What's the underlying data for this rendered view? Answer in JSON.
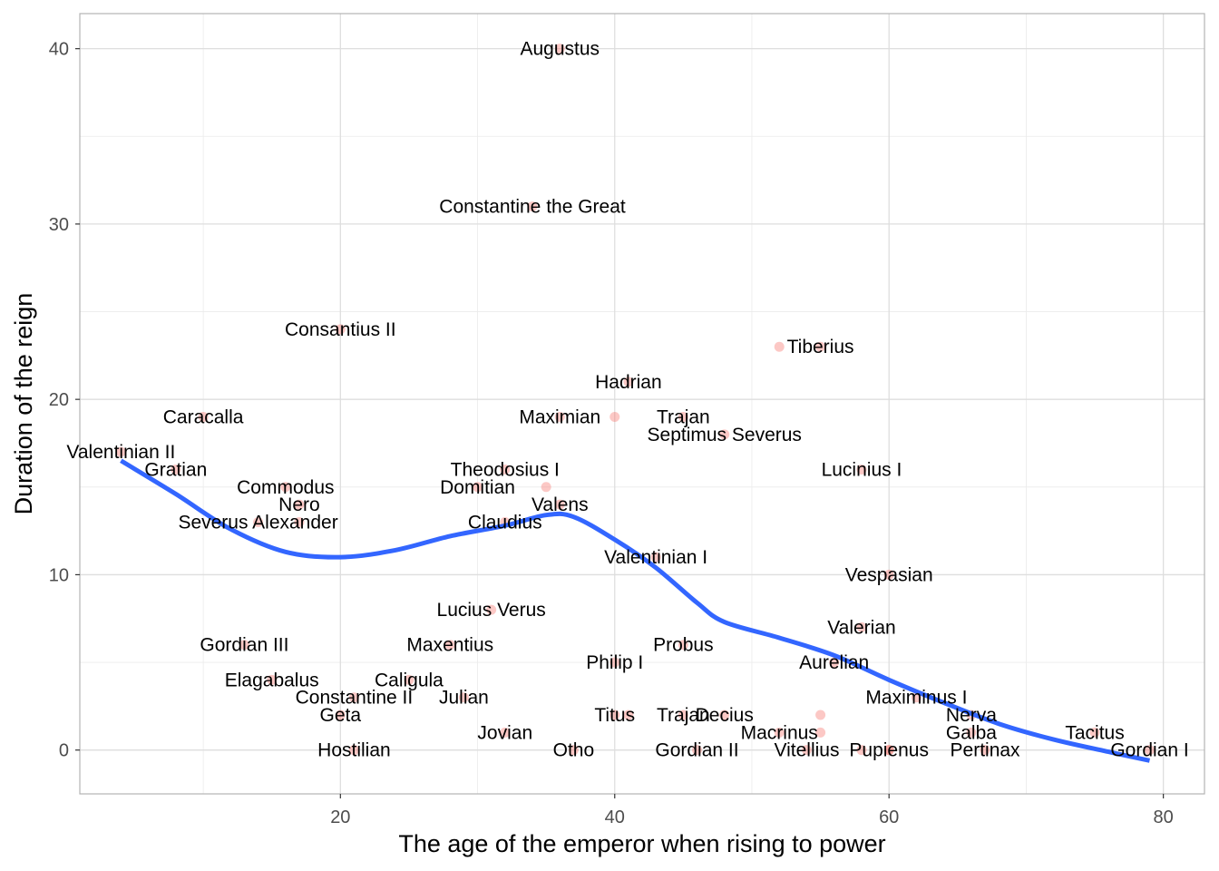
{
  "chart_data": {
    "type": "scatter",
    "xlabel": "The age of the emperor when rising to power",
    "ylabel": "Duration of the reign",
    "xlim": [
      1,
      83
    ],
    "ylim": [
      -2.5,
      42
    ],
    "x_ticks": [
      20,
      40,
      60,
      80
    ],
    "y_ticks": [
      0,
      10,
      20,
      30,
      40
    ],
    "grid": true,
    "point_color": "#F8766D",
    "smooth_color": "#3366FF",
    "points": [
      {
        "name": "Augustus",
        "x": 36,
        "y": 40
      },
      {
        "name": "Tiberius",
        "x": 55,
        "y": 23
      },
      {
        "name": "Caligula",
        "x": 25,
        "y": 4
      },
      {
        "name": "Claudius",
        "x": 32,
        "y": 13
      },
      {
        "name": "Nero",
        "x": 17,
        "y": 14
      },
      {
        "name": "Galba",
        "x": 66,
        "y": 1
      },
      {
        "name": "Otho",
        "x": 37,
        "y": 0
      },
      {
        "name": "Vitellius",
        "x": 54,
        "y": 0
      },
      {
        "name": "Vespasian",
        "x": 60,
        "y": 10
      },
      {
        "name": "Titus",
        "x": 40,
        "y": 2
      },
      {
        "name": "Domitian",
        "x": 30,
        "y": 15
      },
      {
        "name": "Nerva",
        "x": 66,
        "y": 2
      },
      {
        "name": "Trajan",
        "x": 45,
        "y": 19
      },
      {
        "name": "Hadrian",
        "x": 41,
        "y": 21
      },
      {
        "name": "Lucius Verus",
        "x": 31,
        "y": 8
      },
      {
        "name": "Commodus",
        "x": 16,
        "y": 15
      },
      {
        "name": "Pertinax",
        "x": 67,
        "y": 0
      },
      {
        "name": "Septimus Severus",
        "x": 48,
        "y": 18
      },
      {
        "name": "Caracalla",
        "x": 10,
        "y": 19
      },
      {
        "name": "Geta",
        "x": 20,
        "y": 2
      },
      {
        "name": "Macrinus",
        "x": 52,
        "y": 1
      },
      {
        "name": "Elagabalus",
        "x": 15,
        "y": 4
      },
      {
        "name": "Severus Alexander",
        "x": 14,
        "y": 13
      },
      {
        "name": "Maximinus I",
        "x": 62,
        "y": 3
      },
      {
        "name": "Gordian I",
        "x": 79,
        "y": 0
      },
      {
        "name": "Gordian II",
        "x": 46,
        "y": 0
      },
      {
        "name": "Pupienus",
        "x": 60,
        "y": 0
      },
      {
        "name": "Gordian III",
        "x": 13,
        "y": 6
      },
      {
        "name": "Philip I",
        "x": 40,
        "y": 5
      },
      {
        "name": "Decius",
        "x": 48,
        "y": 2
      },
      {
        "name": "Trajan",
        "x": 45,
        "y": 2
      },
      {
        "name": "Hostilian",
        "x": 21,
        "y": 0
      },
      {
        "name": "Valerian",
        "x": 58,
        "y": 7
      },
      {
        "name": "Aurelian",
        "x": 56,
        "y": 5
      },
      {
        "name": "Tacitus",
        "x": 75,
        "y": 1
      },
      {
        "name": "Probus",
        "x": 45,
        "y": 6
      },
      {
        "name": "Maximian",
        "x": 36,
        "y": 19
      },
      {
        "name": "Maxentius",
        "x": 28,
        "y": 6
      },
      {
        "name": "Lucinius I",
        "x": 58,
        "y": 16
      },
      {
        "name": "Constantine the Great",
        "x": 34,
        "y": 31
      },
      {
        "name": "Constantine II",
        "x": 21,
        "y": 3
      },
      {
        "name": "Consantius II",
        "x": 20,
        "y": 24
      },
      {
        "name": "Julian",
        "x": 29,
        "y": 3
      },
      {
        "name": "Jovian",
        "x": 32,
        "y": 1
      },
      {
        "name": "Valentinian I",
        "x": 43,
        "y": 11
      },
      {
        "name": "Valens",
        "x": 36,
        "y": 14
      },
      {
        "name": "Gratian",
        "x": 8,
        "y": 16
      },
      {
        "name": "Valentinian II",
        "x": 4,
        "y": 17
      },
      {
        "name": "Theodosius I",
        "x": 32,
        "y": 16
      }
    ],
    "extra_points": [
      {
        "x": 40,
        "y": 19
      },
      {
        "x": 35,
        "y": 15
      },
      {
        "x": 52,
        "y": 23
      },
      {
        "x": 55,
        "y": 2
      },
      {
        "x": 55,
        "y": 1
      },
      {
        "x": 41,
        "y": 2
      },
      {
        "x": 58,
        "y": 0
      },
      {
        "x": 17,
        "y": 13
      },
      {
        "x": 60,
        "y": 0
      }
    ],
    "smooth": {
      "x": [
        4,
        8,
        12,
        16,
        20,
        24,
        28,
        32,
        35,
        37,
        40,
        43,
        46,
        48,
        52,
        56,
        60,
        64,
        68,
        72,
        76,
        79
      ],
      "y": [
        16.5,
        14.6,
        12.6,
        11.3,
        11.0,
        11.4,
        12.2,
        12.8,
        13.4,
        13.3,
        12.0,
        10.4,
        8.4,
        7.3,
        6.4,
        5.4,
        4.0,
        2.7,
        1.5,
        0.6,
        -0.1,
        -0.6
      ]
    }
  }
}
